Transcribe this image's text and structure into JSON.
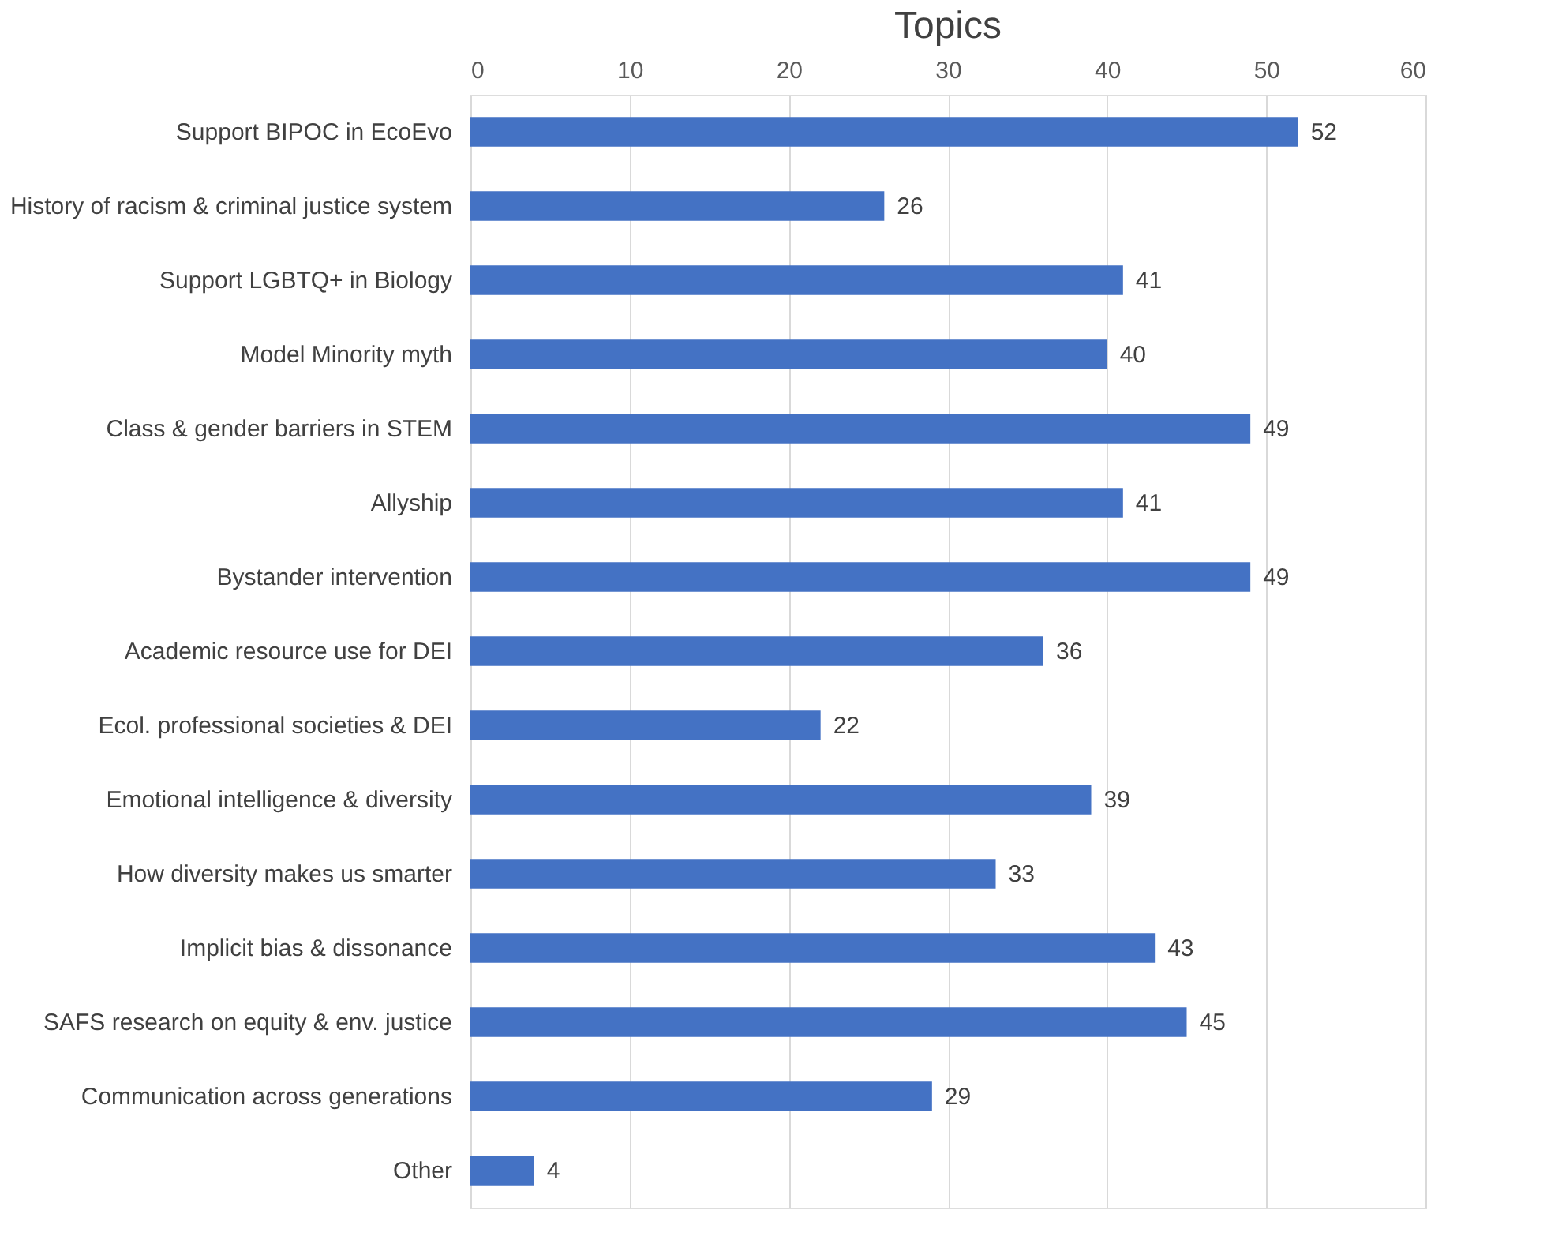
{
  "chart_data": {
    "type": "bar",
    "orientation": "horizontal",
    "title": "Topics",
    "categories": [
      "Support BIPOC in EcoEvo",
      "History of racism & criminal justice system",
      "Support LGBTQ+ in Biology",
      "Model Minority myth",
      "Class & gender barriers in STEM",
      "Allyship",
      "Bystander intervention",
      "Academic resource use for DEI",
      "Ecol. professional societies & DEI",
      "Emotional intelligence & diversity",
      "How diversity makes us smarter",
      "Implicit bias & dissonance",
      "SAFS research on equity & env. justice",
      "Communication across generations",
      "Other"
    ],
    "values": [
      52,
      26,
      41,
      40,
      49,
      41,
      49,
      36,
      22,
      39,
      33,
      43,
      45,
      29,
      4
    ],
    "color": "#4472c4",
    "xlim": [
      0,
      60
    ],
    "xticks": [
      0,
      10,
      20,
      30,
      40,
      50,
      60
    ],
    "grid": "x",
    "data_labels": true
  }
}
